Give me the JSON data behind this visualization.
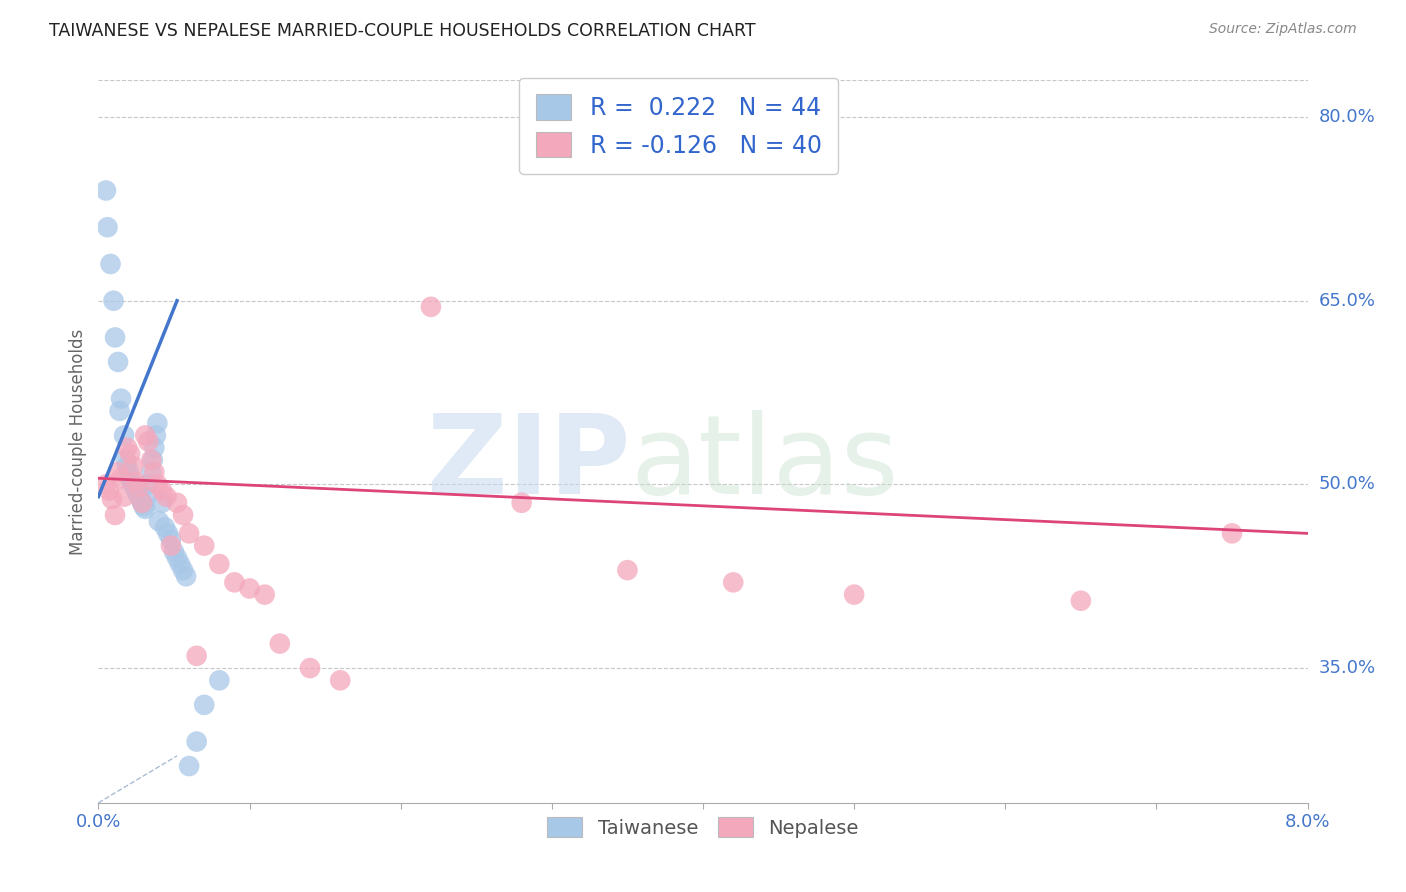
{
  "title": "TAIWANESE VS NEPALESE MARRIED-COUPLE HOUSEHOLDS CORRELATION CHART",
  "source": "Source: ZipAtlas.com",
  "ylabel": "Married-couple Households",
  "xlim": [
    0.0,
    8.0
  ],
  "ylim": [
    24.0,
    83.0
  ],
  "yticks": [
    35.0,
    50.0,
    65.0,
    80.0
  ],
  "background_color": "#ffffff",
  "grid_color": "#c8c8c8",
  "taiwanese_color": "#a8c8e8",
  "nepalese_color": "#f4a8bc",
  "taiwanese_line_color": "#4477cc",
  "nepalese_line_color": "#dd4477",
  "diagonal_color": "#99aaccaa",
  "r_taiwanese": 0.222,
  "n_taiwanese": 44,
  "r_nepalese": -0.126,
  "n_nepalese": 40,
  "legend_label_taiwanese": "Taiwanese",
  "legend_label_nepalese": "Nepalese",
  "taiwanese_x": [
    0.05,
    0.06,
    0.08,
    0.1,
    0.11,
    0.13,
    0.14,
    0.15,
    0.17,
    0.18,
    0.19,
    0.2,
    0.21,
    0.22,
    0.23,
    0.24,
    0.25,
    0.26,
    0.27,
    0.28,
    0.29,
    0.3,
    0.31,
    0.32,
    0.33,
    0.35,
    0.36,
    0.37,
    0.38,
    0.39,
    0.4,
    0.42,
    0.44,
    0.46,
    0.48,
    0.5,
    0.52,
    0.54,
    0.56,
    0.58,
    0.6,
    0.65,
    0.7,
    0.8
  ],
  "taiwanese_y": [
    74.0,
    71.0,
    68.0,
    65.0,
    62.0,
    60.0,
    56.0,
    57.0,
    54.0,
    52.0,
    51.5,
    51.0,
    50.5,
    50.2,
    50.0,
    49.8,
    49.5,
    49.2,
    49.0,
    48.8,
    48.5,
    48.2,
    48.0,
    49.0,
    50.0,
    51.0,
    52.0,
    53.0,
    54.0,
    55.0,
    47.0,
    48.5,
    46.5,
    46.0,
    45.5,
    44.5,
    44.0,
    43.5,
    43.0,
    42.5,
    27.0,
    29.0,
    32.0,
    34.0
  ],
  "nepalese_x": [
    0.05,
    0.07,
    0.09,
    0.11,
    0.13,
    0.15,
    0.17,
    0.19,
    0.21,
    0.23,
    0.25,
    0.27,
    0.29,
    0.31,
    0.33,
    0.35,
    0.37,
    0.39,
    0.42,
    0.45,
    0.48,
    0.52,
    0.56,
    0.6,
    0.65,
    0.7,
    0.8,
    0.9,
    1.0,
    1.1,
    1.2,
    1.4,
    1.6,
    2.2,
    2.8,
    3.5,
    4.2,
    5.0,
    6.5,
    7.5
  ],
  "nepalese_y": [
    50.0,
    49.5,
    48.8,
    47.5,
    51.0,
    50.5,
    49.0,
    53.0,
    52.5,
    51.5,
    50.2,
    49.8,
    48.5,
    54.0,
    53.5,
    52.0,
    51.0,
    50.0,
    49.5,
    49.0,
    45.0,
    48.5,
    47.5,
    46.0,
    36.0,
    45.0,
    43.5,
    42.0,
    41.5,
    41.0,
    37.0,
    35.0,
    34.0,
    64.5,
    48.5,
    43.0,
    42.0,
    41.0,
    40.5,
    46.0
  ]
}
